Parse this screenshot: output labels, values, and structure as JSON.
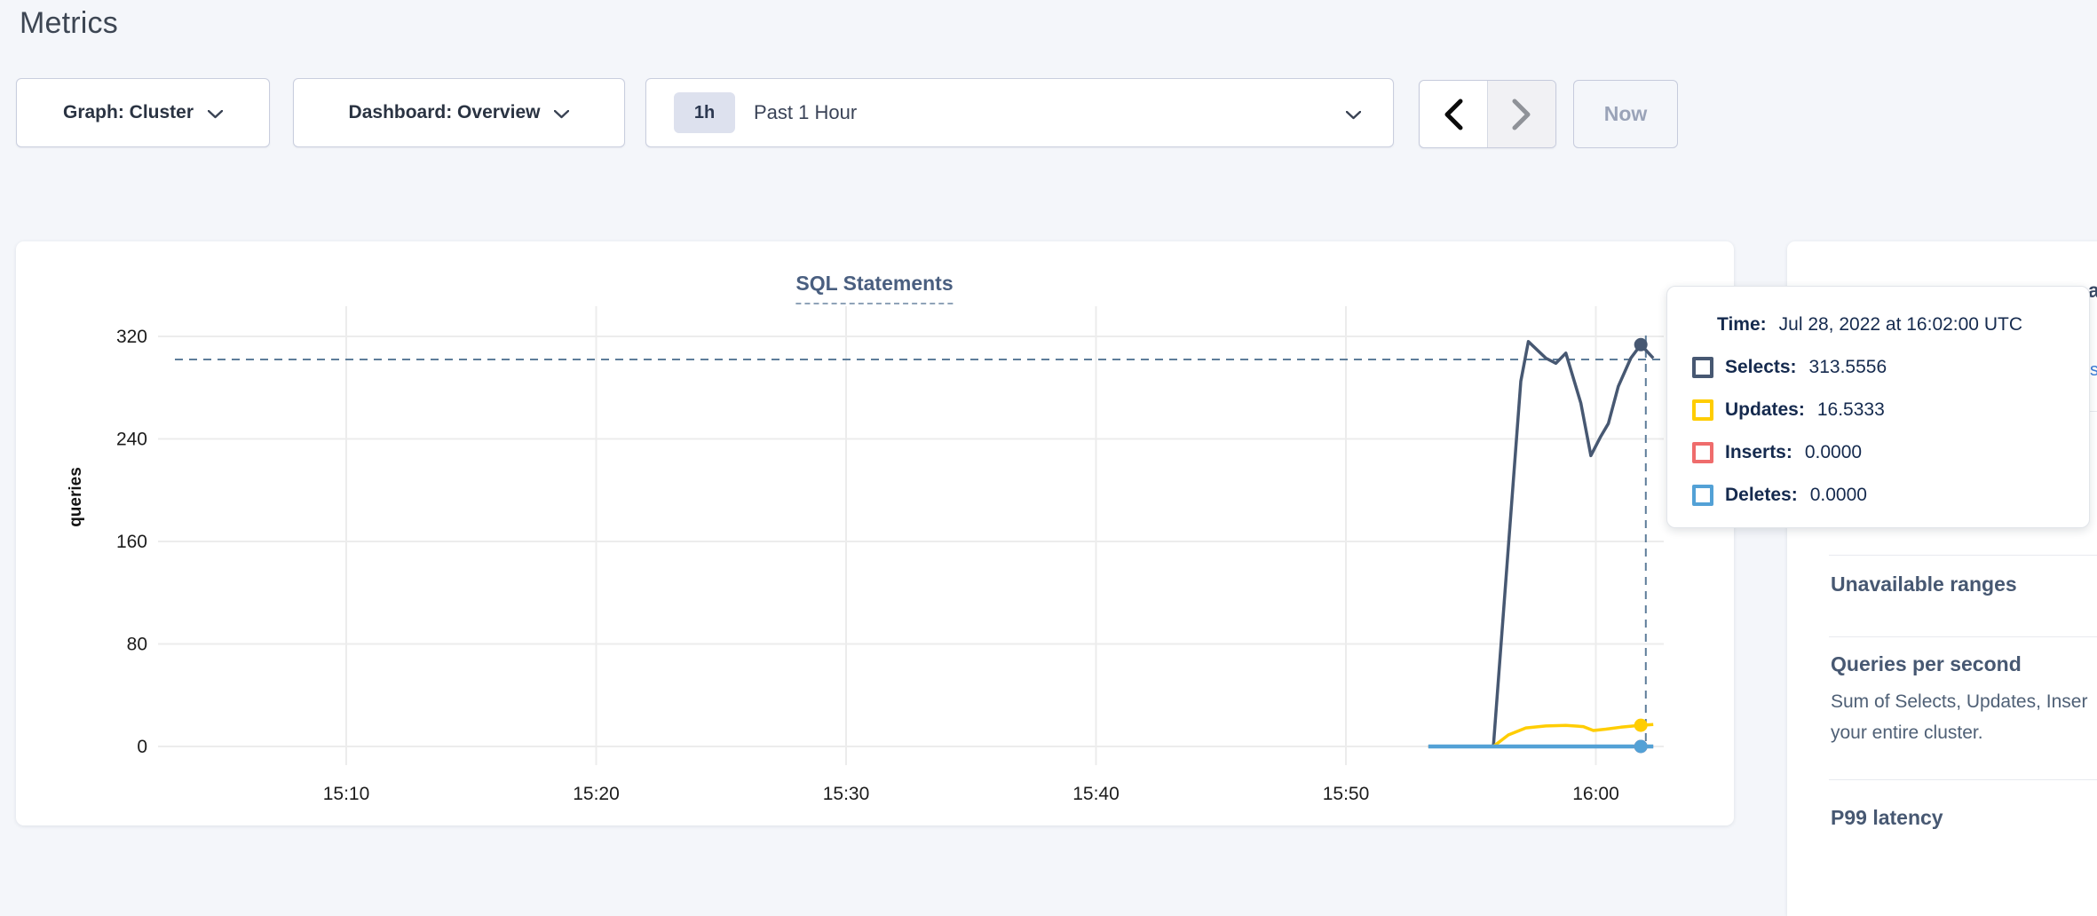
{
  "page": {
    "title": "Metrics"
  },
  "toolbar": {
    "graph_dropdown": "Graph: Cluster",
    "dashboard_dropdown": "Dashboard: Overview",
    "time_badge": "1h",
    "time_label": "Past 1 Hour",
    "now_button": "Now"
  },
  "chart_data": {
    "type": "line",
    "title": "SQL Statements",
    "ylabel": "queries",
    "ylim": [
      0,
      320
    ],
    "yticks": [
      0,
      80,
      160,
      240,
      320
    ],
    "xticks": [
      {
        "m": 10,
        "label": "15:10"
      },
      {
        "m": 20,
        "label": "15:20"
      },
      {
        "m": 30,
        "label": "15:30"
      },
      {
        "m": 40,
        "label": "15:40"
      },
      {
        "m": 50,
        "label": "15:50"
      },
      {
        "m": 60,
        "label": "16:00"
      }
    ],
    "grid": true,
    "legend_position": "tooltip",
    "series": [
      {
        "name": "Selects",
        "color": "#475872",
        "points": [
          [
            53.3,
            0
          ],
          [
            55.9,
            0
          ],
          [
            57.0,
            285
          ],
          [
            57.3,
            316
          ],
          [
            58.0,
            303
          ],
          [
            58.4,
            299
          ],
          [
            58.8,
            307
          ],
          [
            59.4,
            268
          ],
          [
            59.8,
            227
          ],
          [
            60.2,
            242
          ],
          [
            60.5,
            252
          ],
          [
            60.9,
            281
          ],
          [
            61.4,
            303
          ],
          [
            61.8,
            313.5556
          ],
          [
            62.3,
            303
          ]
        ]
      },
      {
        "name": "Updates",
        "color": "#ffcd02",
        "points": [
          [
            53.3,
            0
          ],
          [
            55.9,
            0
          ],
          [
            56.5,
            9
          ],
          [
            57.2,
            14.5
          ],
          [
            58.0,
            16
          ],
          [
            58.8,
            16.5
          ],
          [
            59.5,
            15.5
          ],
          [
            59.9,
            12.5
          ],
          [
            60.4,
            13.5
          ],
          [
            61.0,
            15
          ],
          [
            61.8,
            16.5333
          ],
          [
            62.3,
            17.2
          ]
        ]
      },
      {
        "name": "Inserts",
        "color": "#ef6c6c",
        "points": [
          [
            53.3,
            0
          ],
          [
            61.8,
            0
          ],
          [
            62.3,
            0
          ]
        ]
      },
      {
        "name": "Deletes",
        "color": "#53a1d6",
        "points": [
          [
            53.3,
            0
          ],
          [
            61.8,
            0
          ],
          [
            62.3,
            0
          ]
        ]
      }
    ],
    "hover": {
      "m": 61.8,
      "mouse_m": 62.0,
      "mouse_value": 302,
      "time": "16:02:00"
    }
  },
  "tooltip": {
    "time_label": "Time:",
    "time_value": "Jul 28, 2022 at 16:02:00 UTC",
    "rows": [
      {
        "name": "Selects:",
        "value": "313.5556",
        "color": "#475872"
      },
      {
        "name": "Updates:",
        "value": "16.5333",
        "color": "#ffcd02"
      },
      {
        "name": "Inserts:",
        "value": "0.0000",
        "color": "#ef6c6c"
      },
      {
        "name": "Deletes:",
        "value": "0.0000",
        "color": "#53a1d6"
      }
    ]
  },
  "sidebar": {
    "heading_unavailable_ranges": "Unavailable ranges",
    "heading_qps": "Queries per second",
    "qps_description_line1": "Sum of Selects, Updates, Inser",
    "qps_description_line2": "your entire cluster.",
    "heading_p99": "P99 latency",
    "edge_fragment_top": "a",
    "edge_fragment_link": "s"
  },
  "colors": {
    "accent_selects": "#475872",
    "accent_updates": "#ffcd02",
    "accent_inserts": "#ef6c6c",
    "accent_deletes": "#53a1d6",
    "crosshair": "#5e7d9a"
  }
}
